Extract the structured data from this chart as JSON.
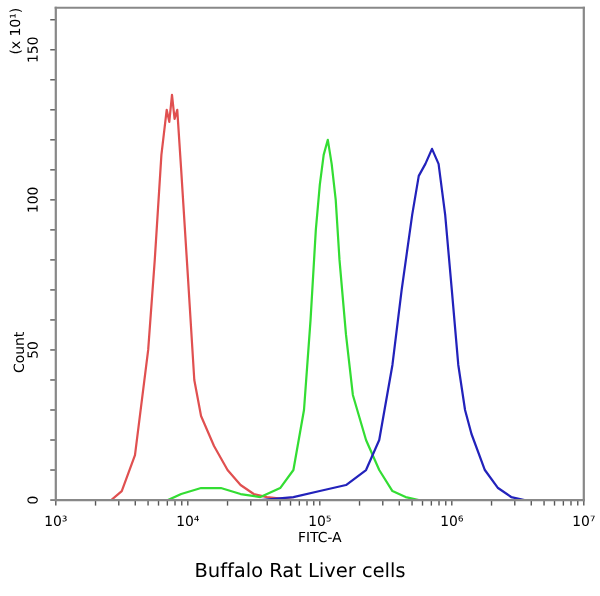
{
  "chart_data": {
    "type": "line",
    "title": "Buffalo Rat Liver cells",
    "xlabel": "FITC-A",
    "ylabel": "Count",
    "annotations": [
      "(x 10¹)"
    ],
    "log": "x",
    "grid": false,
    "legend": false,
    "marker": "none",
    "line_style": "solid",
    "xlim": [
      1000,
      10000000
    ],
    "xticks": [
      {
        "value": 1000,
        "label": "10³"
      },
      {
        "value": 10000,
        "label": "10⁴"
      },
      {
        "value": 100000,
        "label": "10⁵"
      },
      {
        "value": 1000000,
        "label": "10⁶"
      },
      {
        "value": 10000000,
        "label": "10⁷"
      }
    ],
    "ylim": [
      0,
      164
    ],
    "yticks": [
      0,
      50,
      100,
      150
    ],
    "series": [
      {
        "color": "#e05050",
        "x": [
          2630,
          3160,
          3980,
          5010,
          5620,
          6310,
          6920,
          7240,
          7590,
          7940,
          8320,
          8910,
          10000,
          11200,
          12600,
          15800,
          20000,
          25100,
          31600,
          39800,
          63100
        ],
        "values": [
          0,
          3,
          15,
          50,
          80,
          115,
          130,
          126,
          135,
          127,
          130,
          110,
          75,
          40,
          28,
          18,
          10,
          5,
          2,
          1,
          0
        ]
      },
      {
        "color": "#33dd33",
        "x": [
          7080,
          8910,
          12600,
          17800,
          25100,
          35500,
          50100,
          63100,
          75900,
          85100,
          93300,
          100000,
          107000,
          115000,
          123000,
          132000,
          141000,
          158000,
          178000,
          224000,
          282000,
          355000,
          447000,
          562000
        ],
        "values": [
          0,
          2,
          4,
          4,
          2,
          1,
          4,
          10,
          30,
          60,
          90,
          105,
          115,
          120,
          112,
          100,
          80,
          55,
          35,
          20,
          10,
          3,
          1,
          0
        ]
      },
      {
        "color": "#2222bb",
        "x": [
          35500,
          63100,
          100000,
          158000,
          224000,
          282000,
          355000,
          417000,
          501000,
          562000,
          631000,
          708000,
          794000,
          891000,
          1000000,
          1120000,
          1260000,
          1410000,
          1780000,
          2240000,
          2820000,
          3550000
        ],
        "values": [
          0,
          1,
          3,
          5,
          10,
          20,
          45,
          70,
          95,
          108,
          112,
          117,
          112,
          95,
          70,
          45,
          30,
          22,
          10,
          4,
          1,
          0
        ]
      }
    ]
  }
}
